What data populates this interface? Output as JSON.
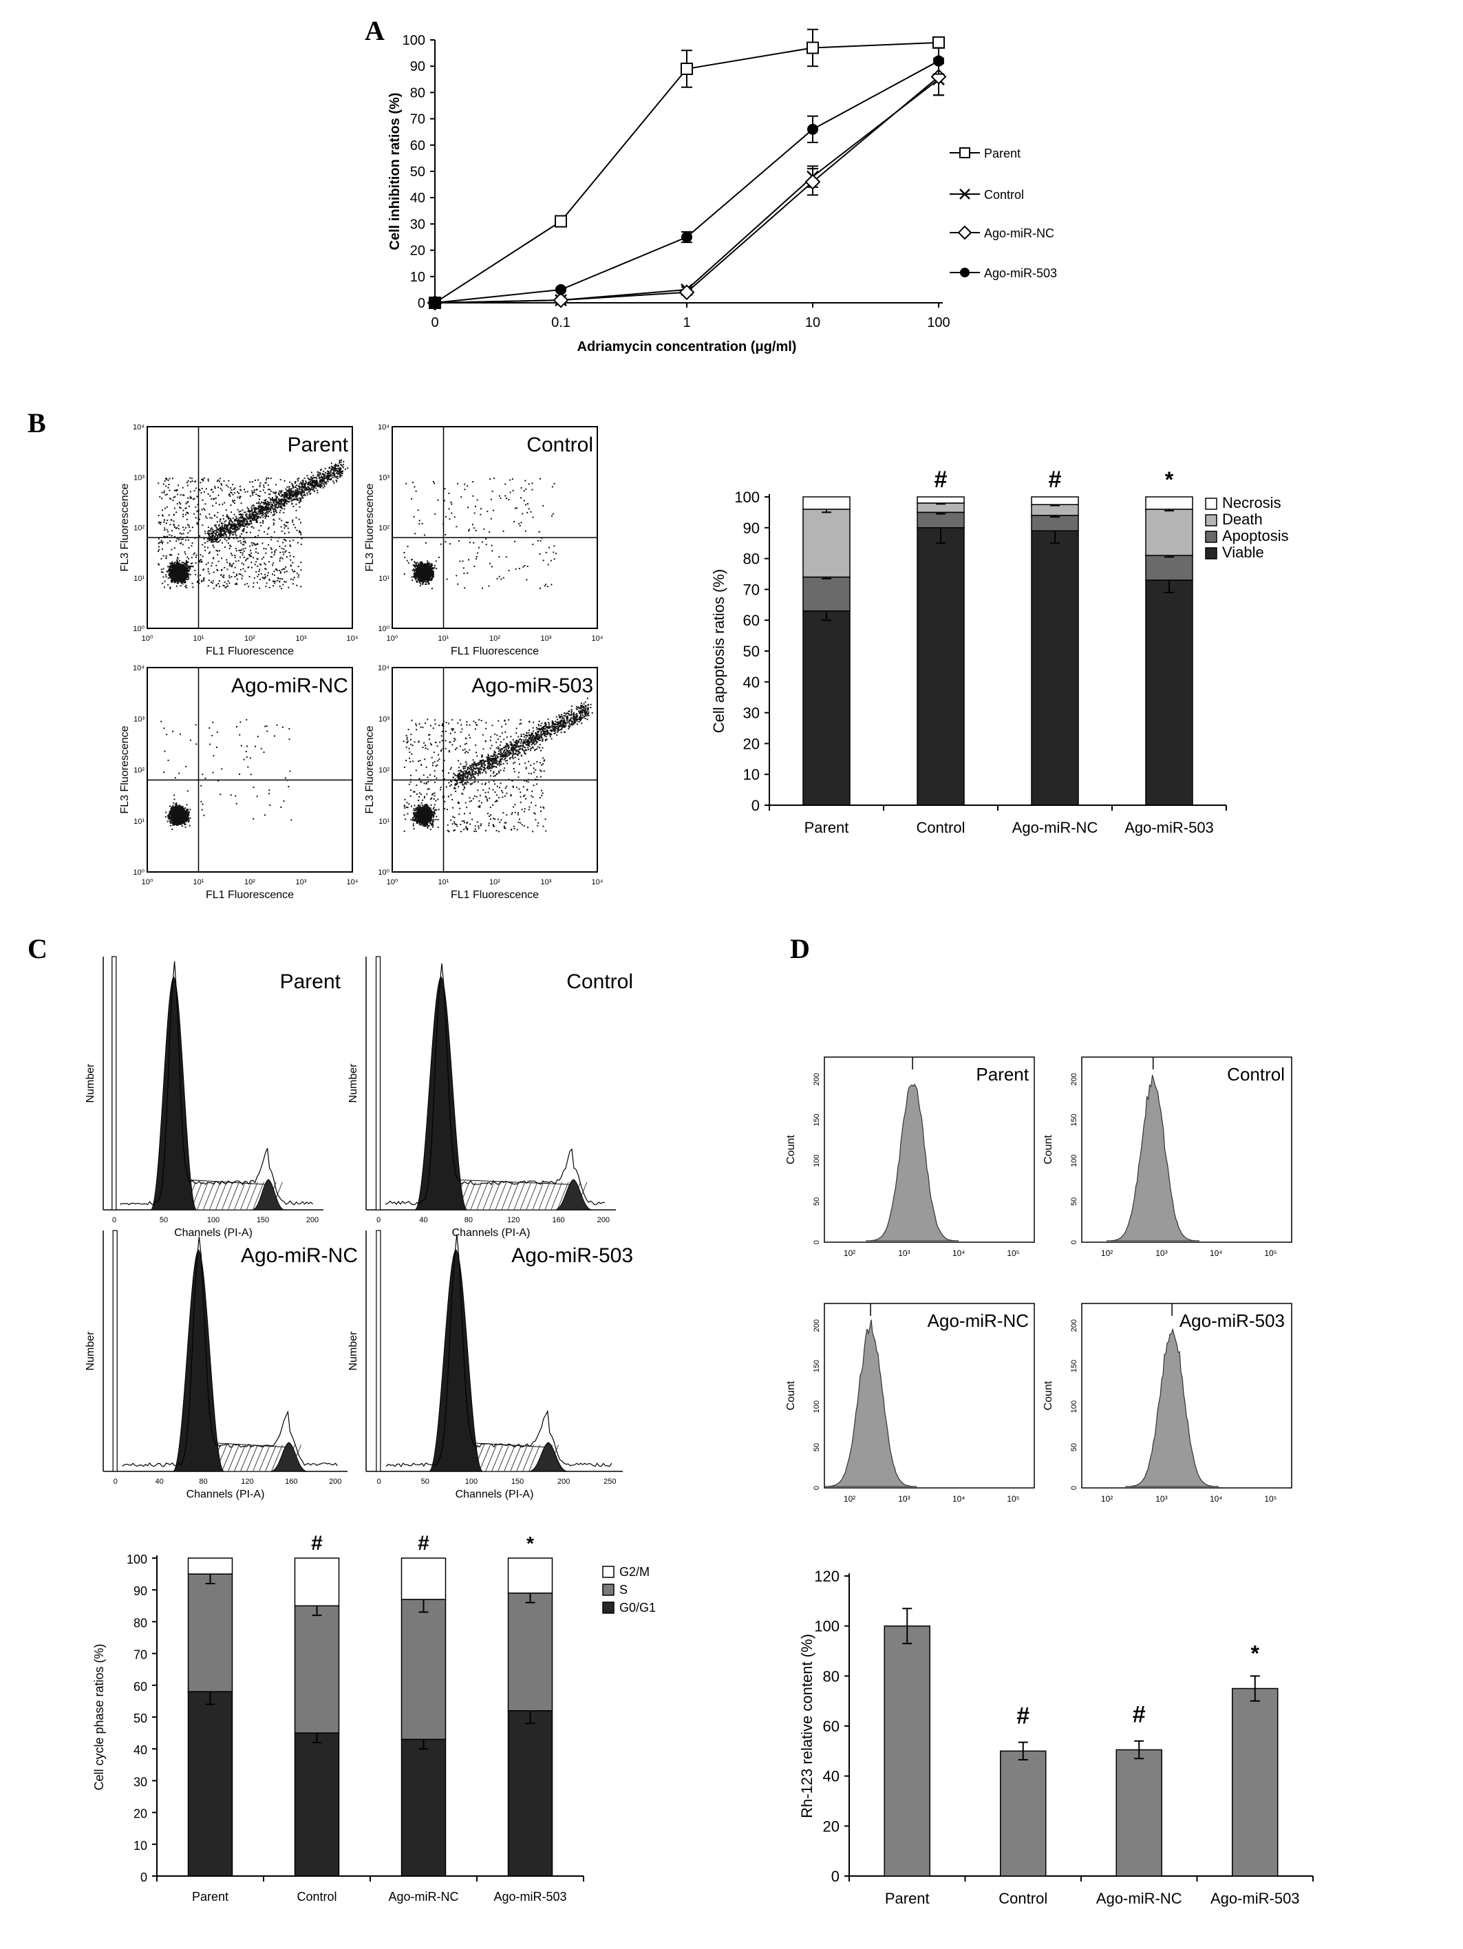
{
  "panel_labels": [
    "A",
    "B",
    "C",
    "D"
  ],
  "chart_data": [
    {
      "id": "A",
      "type": "line",
      "x": [
        "0",
        "0.1",
        "1",
        "10",
        "100"
      ],
      "xlabel": "Adriamycin concentration (μg/ml)",
      "ylabel": "Cell inhibition ratios (%)",
      "ylim": [
        0,
        100
      ],
      "yticks": [
        "0",
        "10",
        "20",
        "30",
        "40",
        "50",
        "60",
        "70",
        "80",
        "90",
        "100"
      ],
      "legend_position": "right",
      "series": [
        {
          "name": "Parent",
          "marker": "open-square",
          "values": [
            0,
            31,
            89,
            97,
            99
          ],
          "errors": [
            0,
            2,
            7,
            7,
            2
          ]
        },
        {
          "name": "Control",
          "marker": "x-mark",
          "values": [
            0,
            1,
            5,
            48,
            85
          ],
          "errors": [
            0,
            0.5,
            1,
            4,
            6
          ]
        },
        {
          "name": "Ago-miR-NC",
          "marker": "open-diamond",
          "values": [
            0,
            1,
            4,
            46,
            86
          ],
          "errors": [
            0,
            0.5,
            1,
            5,
            7
          ]
        },
        {
          "name": "Ago-miR-503",
          "marker": "filled-circle",
          "values": [
            0,
            5,
            25,
            66,
            92
          ],
          "errors": [
            0,
            0.5,
            2,
            5,
            5
          ]
        }
      ]
    },
    {
      "id": "B",
      "type": "bar",
      "stacked": true,
      "categories": [
        "Parent",
        "Control",
        "Ago-miR-NC",
        "Ago-miR-503"
      ],
      "ylabel": "Cell apoptosis ratios (%)",
      "ylim": [
        0,
        100
      ],
      "yticks": [
        "0",
        "10",
        "20",
        "30",
        "40",
        "50",
        "60",
        "70",
        "80",
        "90",
        "100"
      ],
      "annotations": [
        "",
        "#",
        "#",
        "*"
      ],
      "legend_position": "top-right",
      "series": [
        {
          "name": "Viable",
          "color": "#262626",
          "values": [
            63,
            90,
            89,
            73
          ],
          "errors": [
            3,
            5,
            4,
            4
          ]
        },
        {
          "name": "Apoptosis",
          "color": "#6a6a6a",
          "values": [
            11,
            5,
            5,
            8
          ],
          "errors": [
            0.5,
            0.5,
            0.5,
            0.5
          ]
        },
        {
          "name": "Death",
          "color": "#b4b4b4",
          "values": [
            22,
            3,
            3.5,
            15
          ],
          "errors": [
            1,
            0.3,
            0.3,
            0.5
          ]
        },
        {
          "name": "Necrosis",
          "color": "#ffffff",
          "values": [
            4,
            2,
            2.5,
            4
          ],
          "errors": [
            0,
            0,
            0,
            0
          ]
        }
      ]
    },
    {
      "id": "C",
      "type": "bar",
      "stacked": true,
      "categories": [
        "Parent",
        "Control",
        "Ago-miR-NC",
        "Ago-miR-503"
      ],
      "ylabel": "Cell cycle phase ratios (%)",
      "ylim": [
        0,
        100
      ],
      "yticks": [
        "0",
        "10",
        "20",
        "30",
        "40",
        "50",
        "60",
        "70",
        "80",
        "90",
        "100"
      ],
      "annotations": [
        "",
        "#",
        "#",
        "*"
      ],
      "legend_position": "top-right",
      "series": [
        {
          "name": "G0/G1",
          "color": "#262626",
          "values": [
            58,
            45,
            43,
            52
          ],
          "errors": [
            4,
            3,
            3,
            4
          ]
        },
        {
          "name": "S",
          "color": "#7a7a7a",
          "values": [
            37,
            40,
            44,
            37
          ],
          "errors": [
            3,
            3,
            4,
            3
          ]
        },
        {
          "name": "G2/M",
          "color": "#ffffff",
          "values": [
            5,
            15,
            13,
            11
          ],
          "errors": [
            0,
            0,
            0,
            0
          ]
        }
      ]
    },
    {
      "id": "D",
      "type": "bar",
      "categories": [
        "Parent",
        "Control",
        "Ago-miR-NC",
        "Ago-miR-503"
      ],
      "ylabel": "Rh-123 relative content (%)",
      "ylim": [
        0,
        120
      ],
      "yticks": [
        "0",
        "20",
        "40",
        "60",
        "80",
        "100",
        "120"
      ],
      "annotations": [
        "",
        "#",
        "#",
        "*"
      ],
      "series": [
        {
          "name": "Rh-123",
          "color": "#808080",
          "values": [
            100,
            50,
            50.5,
            75
          ],
          "errors": [
            7,
            3.5,
            3.5,
            5
          ]
        }
      ]
    }
  ],
  "scatter_plots": {
    "xlabel": "FL1 Fluorescence",
    "ylabel": "FL3 Fluorescence",
    "tick_labels": [
      "10⁰",
      "10¹",
      "10²",
      "10³",
      "10⁴"
    ],
    "titles": [
      "Parent",
      "Control",
      "Ago-miR-NC",
      "Ago-miR-503"
    ]
  },
  "cycle_histograms": {
    "xlabel": "Channels (PI-A)",
    "ylabel": "Number",
    "titles": [
      "Parent",
      "Control",
      "Ago-miR-NC",
      "Ago-miR-503"
    ]
  },
  "rh_histograms": {
    "ylabel": "Count",
    "yticks": [
      "0",
      "50",
      "100",
      "150",
      "200"
    ],
    "xticks": [
      "10²",
      "10³",
      "10⁴",
      "10⁵"
    ],
    "titles": [
      "Parent",
      "Control",
      "Ago-miR-NC",
      "Ago-miR-503"
    ]
  }
}
